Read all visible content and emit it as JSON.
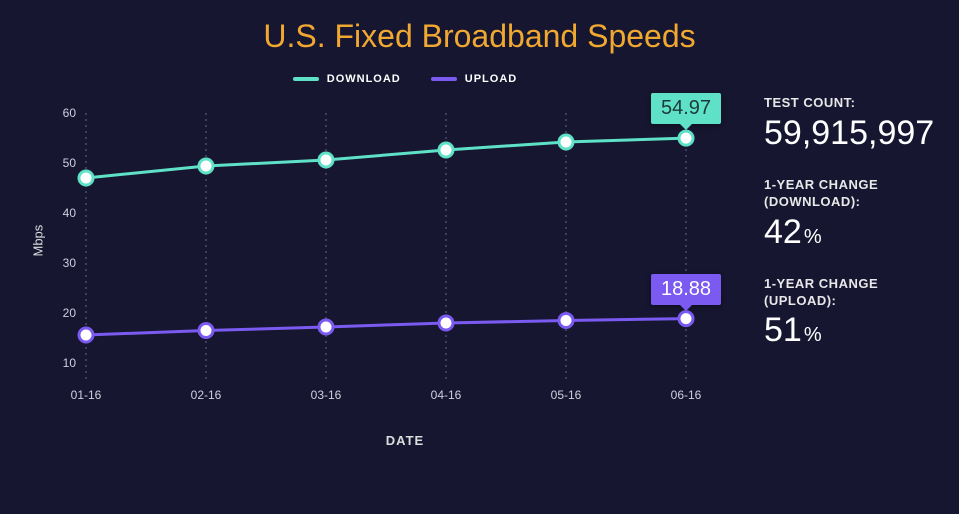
{
  "title": {
    "text": "U.S. Fixed Broadband Speeds",
    "color": "#f0a830",
    "fontsize": 32
  },
  "chart": {
    "type": "line",
    "background_color": "#161631",
    "x_categories": [
      "01-16",
      "02-16",
      "03-16",
      "04-16",
      "05-16",
      "06-16"
    ],
    "y": {
      "min": 10,
      "max": 60,
      "tick_step": 10,
      "label": "Mbps"
    },
    "x_label": "DATE",
    "grid": {
      "style": "dotted",
      "color": "#5a5a78",
      "x": true,
      "y": false
    },
    "marker": {
      "shape": "circle",
      "radius": 7,
      "fill": "#ffffff",
      "stroke_width": 3
    },
    "line_width": 3,
    "series": [
      {
        "name": "DOWNLOAD",
        "color": "#5fe1c8",
        "values": [
          47.0,
          49.4,
          50.6,
          52.6,
          54.2,
          54.97
        ],
        "callout": {
          "text": "54.97",
          "bg": "#5fe1c8",
          "text_color": "#1c3a3a"
        }
      },
      {
        "name": "UPLOAD",
        "color": "#7a5af0",
        "values": [
          15.6,
          16.5,
          17.2,
          18.0,
          18.5,
          18.88
        ],
        "callout": {
          "text": "18.88",
          "bg": "#7a5af0",
          "text_color": "#ffffff"
        }
      }
    ]
  },
  "stats": [
    {
      "label": "TEST COUNT:",
      "value": "59,915,997",
      "is_percent": false
    },
    {
      "label": "1-YEAR CHANGE\n(DOWNLOAD):",
      "value": "42",
      "is_percent": true
    },
    {
      "label": "1-YEAR CHANGE\n(UPLOAD):",
      "value": "51",
      "is_percent": true
    }
  ]
}
